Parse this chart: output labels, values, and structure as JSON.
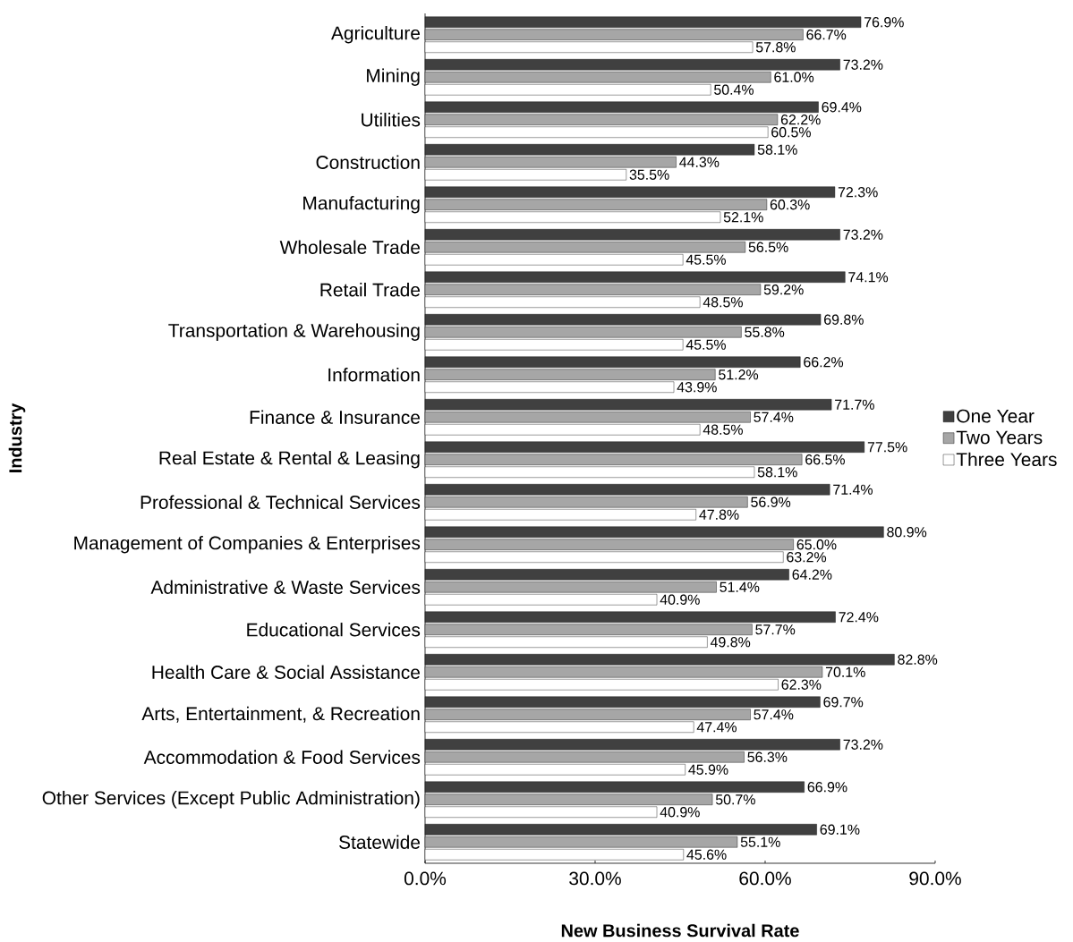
{
  "chart_data": {
    "type": "bar",
    "orientation": "horizontal",
    "xlabel": "New Business Survival Rate",
    "ylabel": "Industry",
    "categories": [
      "Agriculture",
      "Mining",
      "Utilities",
      "Construction",
      "Manufacturing",
      "Wholesale Trade",
      "Retail Trade",
      "Transportation & Warehousing",
      "Information",
      "Finance & Insurance",
      "Real Estate & Rental & Leasing",
      "Professional & Technical Services",
      "Management of Companies & Enterprises",
      "Administrative & Waste Services",
      "Educational Services",
      "Health Care & Social Assistance",
      "Arts, Entertainment, & Recreation",
      "Accommodation & Food Services",
      "Other Services (Except Public Administration)",
      "Statewide"
    ],
    "series": [
      {
        "name": "One Year",
        "color": "#404040",
        "values": [
          76.9,
          73.2,
          69.4,
          58.1,
          72.3,
          73.2,
          74.1,
          69.8,
          66.2,
          71.7,
          77.5,
          71.4,
          80.9,
          64.2,
          72.4,
          82.8,
          69.7,
          73.2,
          66.9,
          69.1
        ],
        "value_labels": [
          "76.9%",
          "73.2%",
          "69.4%",
          "58.1%",
          "72.3%",
          "73.2%",
          "74.1%",
          "69.8%",
          "66.2%",
          "71.7%",
          "77.5%",
          "71.4%",
          "80.9%",
          "64.2%",
          "72.4%",
          "82.8%",
          "69.7%",
          "73.2%",
          "66.9%",
          "69.1%"
        ]
      },
      {
        "name": "Two Years",
        "color": "#a6a6a6",
        "values": [
          66.7,
          61.0,
          62.2,
          44.3,
          60.3,
          56.5,
          59.2,
          55.8,
          51.2,
          57.4,
          66.5,
          56.9,
          65.0,
          51.4,
          57.7,
          70.1,
          57.4,
          56.3,
          50.7,
          55.1
        ],
        "value_labels": [
          "66.7%",
          "61.0%",
          "62.2%",
          "44.3%",
          "60.3%",
          "56.5%",
          "59.2%",
          "55.8%",
          "51.2%",
          "57.4%",
          "66.5%",
          "56.9%",
          "65.0%",
          "51.4%",
          "57.7%",
          "70.1%",
          "57.4%",
          "56.3%",
          "50.7%",
          "55.1%"
        ]
      },
      {
        "name": "Three Years",
        "color": "#ffffff",
        "values": [
          57.8,
          50.4,
          60.5,
          35.5,
          52.1,
          45.5,
          48.5,
          45.5,
          43.9,
          48.5,
          58.1,
          47.8,
          63.2,
          40.9,
          49.8,
          62.3,
          47.4,
          45.9,
          40.9,
          45.6
        ],
        "value_labels": [
          "57.8%",
          "50.4%",
          "60.5%",
          "35.5%",
          "52.1%",
          "45.5%",
          "48.5%",
          "45.5%",
          "43.9%",
          "48.5%",
          "58.1%",
          "47.8%",
          "63.2%",
          "40.9%",
          "49.8%",
          "62.3%",
          "47.4%",
          "45.9%",
          "40.9%",
          "45.6%"
        ]
      }
    ],
    "xlim": [
      0,
      90
    ],
    "xticks": [
      {
        "value": 0,
        "label": "0.0%"
      },
      {
        "value": 30,
        "label": "30.0%"
      },
      {
        "value": 60,
        "label": "60.0%"
      },
      {
        "value": 90,
        "label": "90.0%"
      }
    ],
    "legend": "right",
    "grid": false
  }
}
